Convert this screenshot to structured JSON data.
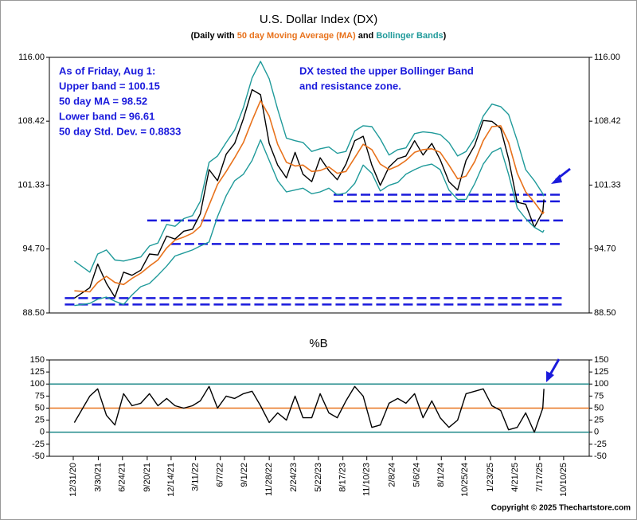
{
  "chart_data": [
    {
      "type": "line",
      "title": "U.S. Dollar Index (DX)",
      "subtitle": [
        "(Daily with ",
        "50 day Moving Average (MA)",
        " and ",
        "Bollinger Bands",
        ")"
      ],
      "subtitle_colors": [
        "#000000",
        "#e8721c",
        "#000000",
        "#1f9a9a",
        "#000000"
      ],
      "log_scale": true,
      "xlim": [
        "10/7/20",
        "1/9/26"
      ],
      "ylim": [
        88.5,
        116
      ],
      "yticks": [
        {
          "value": 88.5,
          "label": "88.50"
        },
        {
          "value": 94.7,
          "label": "94.70"
        },
        {
          "value": 101.33,
          "label": "101.33"
        },
        {
          "value": 108.42,
          "label": "108.42"
        },
        {
          "value": 116,
          "label": "116.00"
        }
      ],
      "x": [
        "1/4/21",
        "2/28/21",
        "3/28/21",
        "4/28/21",
        "5/28/21",
        "6/28/21",
        "7/28/21",
        "8/28/21",
        "9/28/21",
        "10/28/21",
        "11/28/21",
        "12/28/21",
        "1/28/22",
        "2/28/22",
        "3/28/22",
        "4/28/22",
        "5/28/22",
        "6/28/22",
        "7/28/22",
        "8/28/22",
        "9/28/22",
        "10/28/22",
        "11/28/22",
        "12/28/22",
        "1/28/23",
        "2/28/23",
        "3/28/23",
        "4/28/23",
        "5/28/23",
        "6/28/23",
        "7/28/23",
        "8/28/23",
        "9/28/23",
        "10/28/23",
        "11/28/23",
        "12/28/23",
        "1/28/24",
        "2/28/24",
        "3/28/24",
        "4/28/24",
        "5/28/24",
        "6/28/24",
        "7/28/24",
        "8/28/24",
        "9/28/24",
        "10/28/24",
        "11/28/24",
        "12/28/24",
        "1/28/25",
        "2/28/25",
        "3/28/25",
        "4/28/25",
        "5/28/25",
        "6/28/25",
        "7/28/25",
        "8/1/25"
      ],
      "series": [
        {
          "name": "DX",
          "color": "#000000",
          "width": 1.4,
          "values": [
            89.9,
            90.9,
            93.2,
            91.3,
            90.0,
            92.4,
            92.1,
            92.6,
            94.2,
            94.1,
            96.0,
            95.7,
            96.5,
            96.7,
            98.3,
            103.0,
            101.8,
            104.7,
            105.9,
            108.7,
            112.1,
            111.5,
            105.9,
            103.5,
            102.1,
            104.9,
            102.5,
            101.7,
            104.3,
            102.9,
            101.9,
            103.6,
            106.2,
            106.7,
            103.5,
            101.3,
            103.3,
            104.2,
            104.5,
            106.2,
            104.6,
            105.9,
            104.1,
            101.7,
            100.8,
            104.0,
            105.7,
            108.5,
            108.4,
            107.6,
            104.2,
            99.5,
            99.3,
            96.9,
            98.5,
            99.8
          ]
        },
        {
          "name": "50 day MA",
          "color": "#e8721c",
          "width": 1.6,
          "values": [
            90.6,
            90.5,
            91.4,
            92.0,
            91.4,
            91.2,
            91.8,
            92.3,
            93.0,
            93.6,
            94.8,
            95.6,
            95.9,
            96.3,
            97.0,
            99.2,
            101.4,
            102.8,
            104.3,
            106.0,
            108.5,
            110.8,
            109.0,
            105.8,
            103.8,
            103.4,
            103.5,
            102.8,
            102.9,
            103.3,
            102.6,
            102.8,
            104.3,
            105.8,
            105.2,
            103.6,
            103.0,
            103.4,
            104.0,
            104.9,
            105.2,
            105.3,
            104.9,
            103.5,
            102.0,
            102.3,
            103.9,
            106.2,
            107.8,
            107.9,
            106.0,
            102.6,
            100.6,
            99.5,
            98.3,
            98.52
          ]
        },
        {
          "name": "Upper band",
          "color": "#1f9a9a",
          "width": 1.4,
          "values": [
            93.5,
            92.4,
            94.2,
            94.6,
            93.6,
            93.5,
            93.7,
            93.9,
            95.0,
            95.3,
            97.2,
            97.0,
            97.8,
            98.1,
            99.6,
            103.8,
            104.5,
            106.0,
            107.4,
            110.0,
            113.5,
            115.5,
            113.4,
            109.8,
            106.5,
            106.2,
            106.0,
            105.0,
            105.3,
            105.5,
            104.8,
            105.0,
            107.3,
            107.9,
            107.8,
            106.4,
            104.6,
            105.2,
            105.4,
            107.0,
            107.2,
            107.1,
            106.9,
            106.0,
            104.5,
            105.0,
            106.5,
            109.0,
            110.4,
            110.1,
            109.2,
            106.2,
            103.0,
            101.8,
            100.4,
            100.15
          ]
        },
        {
          "name": "Lower band",
          "color": "#1f9a9a",
          "width": 1.4,
          "values": [
            89.2,
            89.4,
            89.8,
            90.0,
            89.6,
            89.3,
            90.2,
            91.0,
            91.3,
            92.1,
            93.0,
            94.0,
            94.3,
            94.6,
            95.0,
            95.4,
            98.0,
            100.2,
            101.8,
            102.5,
            104.0,
            106.3,
            104.0,
            101.8,
            100.6,
            100.8,
            101.0,
            100.4,
            100.6,
            101.0,
            100.3,
            100.5,
            101.5,
            103.5,
            102.6,
            100.7,
            101.3,
            101.6,
            102.5,
            103.0,
            103.4,
            103.6,
            103.0,
            100.8,
            99.8,
            99.8,
            101.5,
            103.6,
            104.9,
            105.4,
            102.5,
            98.9,
            97.8,
            96.9,
            96.4,
            96.61
          ]
        }
      ],
      "reference_lines": [
        {
          "value": 100.3,
          "from": "7/15/23",
          "to": "10/10/25",
          "color": "#1a1adc"
        },
        {
          "value": 99.6,
          "from": "7/15/23",
          "to": "10/10/25",
          "color": "#1a1adc"
        },
        {
          "value": 97.6,
          "from": "9/20/21",
          "to": "10/10/25",
          "color": "#1a1adc"
        },
        {
          "value": 95.2,
          "from": "12/14/21",
          "to": "10/10/25",
          "color": "#1a1adc"
        },
        {
          "value": 89.9,
          "from": "12/1/20",
          "to": "10/10/25",
          "color": "#1a1adc"
        },
        {
          "value": 89.3,
          "from": "12/1/20",
          "to": "10/10/25",
          "color": "#1a1adc"
        }
      ],
      "annotations": [
        "As of Friday, Aug 1:",
        "Upper band = 100.15",
        "50 day MA = 98.52",
        "Lower band = 96.61",
        "50 day Std. Dev. = 0.8833",
        "DX tested the upper Bollinger Band",
        "and resistance zone."
      ]
    },
    {
      "type": "line",
      "title": "%B",
      "xlim": [
        "10/7/20",
        "1/9/26"
      ],
      "xticks": [
        "12/31/20",
        "3/30/21",
        "6/24/21",
        "9/20/21",
        "12/14/21",
        "3/11/22",
        "6/7/22",
        "9/1/22",
        "11/28/22",
        "2/24/23",
        "5/22/23",
        "8/17/23",
        "11/10/23",
        "2/8/24",
        "5/6/24",
        "8/1/24",
        "10/25/24",
        "1/23/25",
        "4/21/25",
        "7/17/25",
        "10/10/25"
      ],
      "ylim": [
        -50,
        150
      ],
      "yticks": [
        -50,
        -25,
        0,
        25,
        50,
        75,
        100,
        125,
        150
      ],
      "x": [
        "1/4/21",
        "2/28/21",
        "3/28/21",
        "4/28/21",
        "5/28/21",
        "6/28/21",
        "7/28/21",
        "8/28/21",
        "9/28/21",
        "10/28/21",
        "11/28/21",
        "12/28/21",
        "1/28/22",
        "2/28/22",
        "3/28/22",
        "4/28/22",
        "5/28/22",
        "6/28/22",
        "7/28/22",
        "8/28/22",
        "9/28/22",
        "10/28/22",
        "11/28/22",
        "12/28/22",
        "1/28/23",
        "2/28/23",
        "3/28/23",
        "4/28/23",
        "5/28/23",
        "6/28/23",
        "7/28/23",
        "8/28/23",
        "9/28/23",
        "10/28/23",
        "11/28/23",
        "12/28/23",
        "1/28/24",
        "2/28/24",
        "3/28/24",
        "4/28/24",
        "5/28/24",
        "6/28/24",
        "7/28/24",
        "8/28/24",
        "9/28/24",
        "10/28/24",
        "11/28/24",
        "12/28/24",
        "1/28/25",
        "2/28/25",
        "3/28/25",
        "4/28/25",
        "5/28/25",
        "6/28/25",
        "7/28/25",
        "8/1/25"
      ],
      "series": [
        {
          "name": "%B",
          "color": "#000000",
          "width": 1.4,
          "values": [
            20,
            75,
            90,
            35,
            15,
            80,
            55,
            60,
            80,
            55,
            70,
            55,
            50,
            55,
            65,
            95,
            50,
            75,
            70,
            80,
            85,
            55,
            20,
            40,
            25,
            75,
            30,
            30,
            80,
            40,
            30,
            65,
            95,
            75,
            10,
            15,
            60,
            70,
            60,
            80,
            30,
            65,
            30,
            10,
            25,
            80,
            85,
            90,
            55,
            45,
            5,
            10,
            40,
            0,
            50,
            90
          ]
        }
      ],
      "reference_lines": [
        {
          "value": 100,
          "color": "#1f8a8a"
        },
        {
          "value": 50,
          "color": "#e8721c"
        },
        {
          "value": 0,
          "color": "#1f8a8a"
        }
      ],
      "footer": "Copyright © 2025 Thechartstore.com"
    }
  ]
}
